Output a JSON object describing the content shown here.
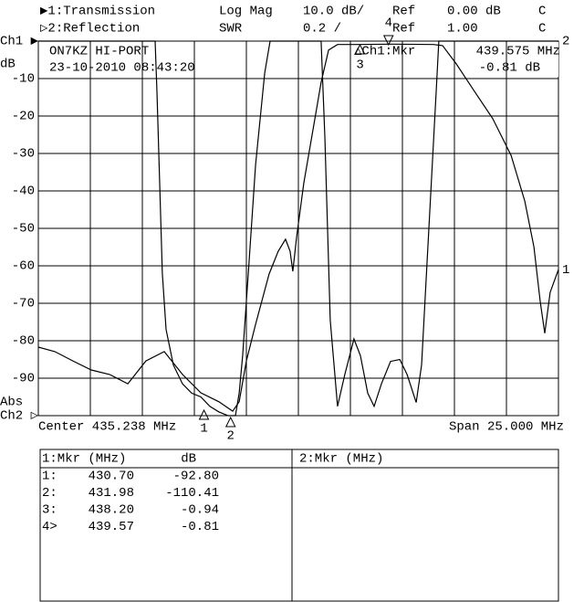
{
  "header": {
    "row1": [
      "▶1:Transmission",
      "Log Mag",
      "10.0 dB/",
      "Ref",
      "0.00 dB",
      "C"
    ],
    "row2": [
      "▷2:Reflection",
      "SWR",
      "0.2 /",
      "Ref",
      "1.00",
      "C"
    ]
  },
  "left": {
    "ch1": "Ch1 ▶",
    "unit": "dB",
    "abs": "Abs",
    "ch2": "Ch2 ▷"
  },
  "overlay": {
    "station": "ON7KZ HI-PORT",
    "datetime": "23-10-2010 08:43:20",
    "marker_title": "△Ch1:Mkr",
    "marker_freq": "439.575 MHz",
    "marker_value": "-0.81 dB"
  },
  "footer": {
    "center": "Center 435.238 MHz",
    "span": "Span 25.000 MHz"
  },
  "chart_data": {
    "type": "line",
    "xlim": [
      422.738,
      447.738
    ],
    "ylim": [
      -100,
      0
    ],
    "y2lim": [
      1,
      3
    ],
    "yticks": [
      -90,
      -80,
      -70,
      -60,
      -50,
      -40,
      -30,
      -20,
      -10
    ],
    "grid": true,
    "series": [
      {
        "name": "1",
        "color": "#000000",
        "x": [
          422.74,
          423.53,
          424.4,
          425.28,
          426.16,
          427.04,
          427.91,
          428.79,
          429.67,
          430.55,
          431.42,
          432.08,
          432.39,
          432.74,
          433.18,
          433.83,
          434.27,
          434.62,
          434.84,
          434.97,
          435.15,
          435.5,
          436.03,
          436.33,
          436.69,
          437.12,
          438.0,
          439.76,
          441.73,
          442.17,
          442.83,
          443.7,
          444.58,
          445.46,
          446.12,
          446.56,
          446.86,
          447.08,
          447.34,
          447.74
        ],
        "values": [
          -81.7,
          -82.9,
          -85.4,
          -87.8,
          -89.0,
          -91.5,
          -85.4,
          -82.9,
          -89.0,
          -93.9,
          -96.3,
          -98.8,
          -96.3,
          -85.4,
          -75.6,
          -62.2,
          -56.1,
          -52.9,
          -56.1,
          -61.5,
          -52.4,
          -37.8,
          -20.7,
          -11.0,
          -2.4,
          -0.9,
          -0.9,
          -0.8,
          -0.9,
          -1.2,
          -6.1,
          -13.4,
          -20.7,
          -30.5,
          -42.7,
          -54.9,
          -69.5,
          -78.0,
          -67.1,
          -61.0
        ]
      },
      {
        "name": "2",
        "color": "#000000",
        "axis": "y2",
        "x": [
          422.74,
          428.35,
          428.44,
          428.57,
          428.7,
          428.88,
          429.23,
          429.67,
          430.11,
          430.55,
          430.98,
          431.42,
          431.86,
          432.21,
          432.39,
          432.56,
          432.83,
          433.18,
          433.62,
          433.88,
          436.33,
          436.51,
          436.77,
          437.12,
          437.47,
          437.91,
          438.22,
          438.57,
          438.88,
          439.23,
          439.67,
          440.11,
          440.46,
          440.9,
          441.16,
          441.51,
          441.86,
          441.99,
          447.74
        ],
        "values": [
          3.0,
          3.0,
          2.73,
          2.24,
          1.76,
          1.46,
          1.27,
          1.17,
          1.12,
          1.1,
          1.05,
          1.02,
          1.0,
          1.0,
          1.12,
          1.32,
          1.76,
          2.34,
          2.83,
          3.0,
          3.0,
          2.49,
          1.51,
          1.05,
          1.22,
          1.41,
          1.32,
          1.12,
          1.05,
          1.17,
          1.29,
          1.3,
          1.22,
          1.07,
          1.27,
          2.0,
          2.73,
          3.0,
          3.0
        ]
      }
    ],
    "markers": [
      {
        "label": "1",
        "x": 430.7
      },
      {
        "label": "2",
        "x": 431.98
      },
      {
        "label": "3",
        "x": 438.2
      },
      {
        "label": "4",
        "x": 439.57
      }
    ]
  },
  "table": {
    "head1": [
      "1:Mkr (MHz)",
      "dB"
    ],
    "head2": "2:Mkr (MHz)",
    "rows": [
      [
        "1:",
        "430.70",
        "-92.80"
      ],
      [
        "2:",
        "431.98",
        "-110.41"
      ],
      [
        "3:",
        "438.20",
        "-0.94"
      ],
      [
        "4>",
        "439.57",
        "-0.81"
      ]
    ]
  }
}
